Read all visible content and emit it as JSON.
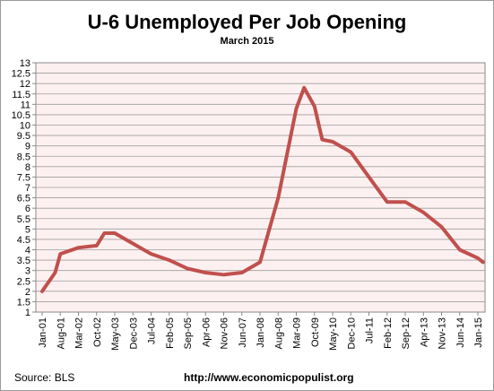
{
  "title": "U-6 Unemployed Per Job Opening",
  "subtitle": "March 2015",
  "source": "Source:  BLS",
  "url": "http://www.economicpopulist.org",
  "chart_data": {
    "type": "line",
    "title": "U-6 Unemployed Per Job Opening",
    "subtitle": "March 2015",
    "xlabel": "",
    "ylabel": "",
    "ylim": [
      1,
      13
    ],
    "yticks": [
      "1",
      "1.5",
      "2",
      "2.5",
      "3",
      "3.5",
      "4",
      "4.5",
      "5",
      "5.5",
      "6",
      "6.5",
      "7",
      "7.5",
      "8",
      "8.5",
      "9",
      "9.5",
      "10",
      "10.5",
      "11",
      "11.5",
      "12",
      "12.5",
      "13"
    ],
    "xticks": [
      "Jan-01",
      "Aug-01",
      "Mar-02",
      "Oct-02",
      "May-03",
      "Dec-03",
      "Jul-04",
      "Feb-05",
      "Sep-05",
      "Apr-06",
      "Nov-06",
      "Jun-07",
      "Jan-08",
      "Aug-08",
      "Mar-09",
      "Oct-09",
      "May-10",
      "Dec-10",
      "Jul-11",
      "Feb-12",
      "Sep-12",
      "Apr-13",
      "Nov-13",
      "Jun-14",
      "Jan-15"
    ],
    "grid": "horizontal",
    "series_color": "#c0504d",
    "plot_background": "#fdf0f0",
    "series": [
      {
        "x": [
          "Jan-01",
          "Jun-01",
          "Aug-01",
          "Mar-02",
          "Oct-02",
          "Jan-03",
          "May-03",
          "Dec-03",
          "Jul-04",
          "Feb-05",
          "Sep-05",
          "Apr-06",
          "Nov-06",
          "Jun-07",
          "Jan-08",
          "Aug-08",
          "Mar-09",
          "Jun-09",
          "Oct-09",
          "Jan-10",
          "May-10",
          "Dec-10",
          "Jul-11",
          "Feb-12",
          "Sep-12",
          "Apr-13",
          "Nov-13",
          "Jun-14",
          "Jan-15",
          "Mar-15"
        ],
        "values": [
          2.0,
          2.9,
          3.8,
          4.1,
          4.2,
          4.8,
          4.8,
          4.3,
          3.8,
          3.5,
          3.1,
          2.9,
          2.8,
          2.9,
          3.4,
          6.5,
          10.8,
          11.8,
          10.9,
          9.3,
          9.2,
          8.7,
          7.5,
          6.3,
          6.3,
          5.8,
          5.1,
          4.0,
          3.6,
          3.4
        ]
      }
    ]
  }
}
